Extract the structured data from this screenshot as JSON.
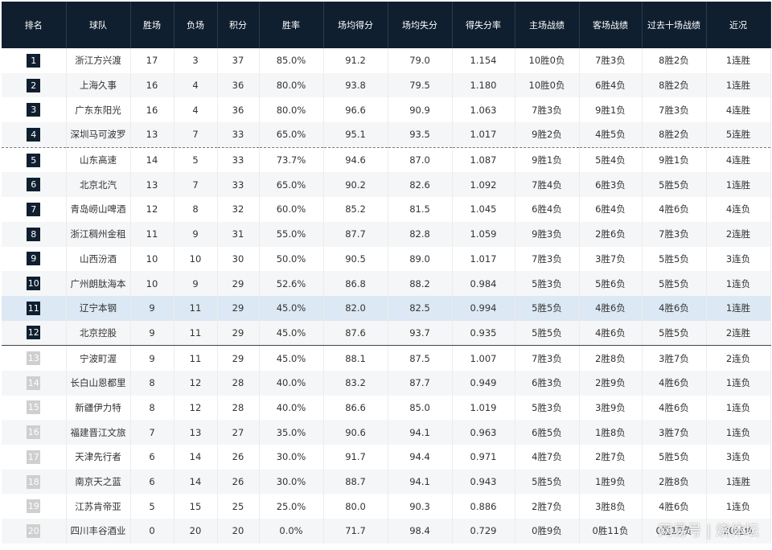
{
  "table": {
    "headers": [
      "排名",
      "球队",
      "胜场",
      "负场",
      "积分",
      "胜率",
      "场均得分",
      "场均失分",
      "得失分率",
      "主场战绩",
      "客场战绩",
      "过去十场战绩",
      "近况"
    ],
    "rows": [
      [
        "1",
        "浙江方兴渡",
        "17",
        "3",
        "37",
        "85.0%",
        "91.2",
        "79.0",
        "1.154",
        "10胜0负",
        "7胜3负",
        "8胜2负",
        "1连胜"
      ],
      [
        "2",
        "上海久事",
        "16",
        "4",
        "36",
        "80.0%",
        "93.8",
        "79.5",
        "1.180",
        "10胜0负",
        "6胜4负",
        "8胜2负",
        "1连胜"
      ],
      [
        "3",
        "广东东阳光",
        "16",
        "4",
        "36",
        "80.0%",
        "96.6",
        "90.9",
        "1.063",
        "7胜3负",
        "9胜1负",
        "7胜3负",
        "4连胜"
      ],
      [
        "4",
        "深圳马可波罗",
        "13",
        "7",
        "33",
        "65.0%",
        "95.1",
        "93.5",
        "1.017",
        "9胜2负",
        "4胜5负",
        "8胜2负",
        "5连胜"
      ],
      [
        "5",
        "山东高速",
        "14",
        "5",
        "33",
        "73.7%",
        "94.6",
        "87.0",
        "1.087",
        "9胜1负",
        "5胜4负",
        "9胜1负",
        "4连胜"
      ],
      [
        "6",
        "北京北汽",
        "13",
        "7",
        "33",
        "65.0%",
        "90.2",
        "82.6",
        "1.092",
        "7胜4负",
        "6胜3负",
        "5胜5负",
        "1连胜"
      ],
      [
        "7",
        "青岛崂山啤酒",
        "12",
        "8",
        "32",
        "60.0%",
        "85.2",
        "81.5",
        "1.045",
        "6胜4负",
        "6胜4负",
        "4胜6负",
        "4连负"
      ],
      [
        "8",
        "浙江稠州金租",
        "11",
        "9",
        "31",
        "55.0%",
        "87.7",
        "82.8",
        "1.059",
        "9胜3负",
        "2胜6负",
        "7胜3负",
        "2连胜"
      ],
      [
        "9",
        "山西汾酒",
        "10",
        "10",
        "30",
        "50.0%",
        "90.5",
        "89.0",
        "1.017",
        "7胜3负",
        "3胜7负",
        "5胜5负",
        "3连负"
      ],
      [
        "10",
        "广州朗肽海本",
        "10",
        "9",
        "29",
        "52.6%",
        "86.8",
        "88.2",
        "0.984",
        "5胜3负",
        "5胜6负",
        "5胜5负",
        "1连负"
      ],
      [
        "11",
        "辽宁本钢",
        "9",
        "11",
        "29",
        "45.0%",
        "82.0",
        "82.5",
        "0.994",
        "5胜5负",
        "4胜6负",
        "4胜6负",
        "1连胜"
      ],
      [
        "12",
        "北京控股",
        "9",
        "11",
        "29",
        "45.0%",
        "87.6",
        "93.7",
        "0.935",
        "5胜5负",
        "4胜6负",
        "5胜5负",
        "2连胜"
      ],
      [
        "13",
        "宁波町渥",
        "9",
        "11",
        "29",
        "45.0%",
        "88.1",
        "87.5",
        "1.007",
        "7胜3负",
        "2胜8负",
        "3胜7负",
        "2连负"
      ],
      [
        "14",
        "长白山恩都里",
        "8",
        "12",
        "28",
        "40.0%",
        "83.2",
        "87.7",
        "0.949",
        "6胜3负",
        "2胜9负",
        "4胜6负",
        "1连负"
      ],
      [
        "15",
        "新疆伊力特",
        "8",
        "12",
        "28",
        "40.0%",
        "86.6",
        "85.0",
        "1.019",
        "5胜3负",
        "3胜9负",
        "4胜6负",
        "1连负"
      ],
      [
        "16",
        "福建晋江文旅",
        "7",
        "13",
        "27",
        "35.0%",
        "90.6",
        "94.1",
        "0.963",
        "6胜5负",
        "1胜8负",
        "3胜7负",
        "1连负"
      ],
      [
        "17",
        "天津先行者",
        "6",
        "14",
        "26",
        "30.0%",
        "91.7",
        "94.4",
        "0.971",
        "4胜7负",
        "2胜7负",
        "5胜5负",
        "3连负"
      ],
      [
        "18",
        "南京天之蓝",
        "6",
        "14",
        "26",
        "30.0%",
        "88.7",
        "94.1",
        "0.943",
        "5胜5负",
        "1胜9负",
        "2胜8负",
        "1连胜"
      ],
      [
        "19",
        "江苏肯帝亚",
        "5",
        "15",
        "25",
        "25.0%",
        "80.0",
        "90.3",
        "0.886",
        "2胜7负",
        "3胜8负",
        "4胜6负",
        "1连负"
      ],
      [
        "20",
        "四川丰谷酒业",
        "0",
        "20",
        "20",
        "0.0%",
        "71.7",
        "98.4",
        "0.729",
        "0胜9负",
        "0胜11负",
        "0胜10负",
        "20连负"
      ]
    ],
    "watermark": "网易号 | 烧体坛"
  }
}
